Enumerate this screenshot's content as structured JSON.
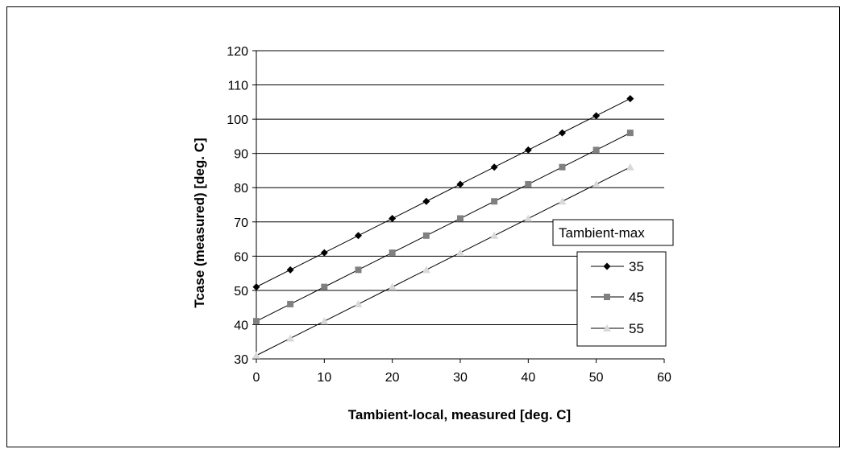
{
  "chart_data": {
    "type": "line",
    "title": "",
    "xlabel": "Tambient-local, measured [deg. C]",
    "ylabel": "Tcase (measured) [deg. C]",
    "xlim": [
      0,
      60
    ],
    "ylim": [
      30,
      120
    ],
    "x_ticks": [
      0,
      10,
      20,
      30,
      40,
      50,
      60
    ],
    "y_ticks": [
      30,
      40,
      50,
      60,
      70,
      80,
      90,
      100,
      110,
      120
    ],
    "grid": "horizontal",
    "legend_title": "Tambient-max",
    "legend_position": "right",
    "x": [
      0,
      5,
      10,
      15,
      20,
      25,
      30,
      35,
      40,
      45,
      50,
      55
    ],
    "series": [
      {
        "name": "35",
        "marker": "diamond",
        "color": "#000000",
        "values": [
          51,
          56,
          61,
          66,
          71,
          76,
          81,
          86,
          91,
          96,
          101,
          106
        ]
      },
      {
        "name": "45",
        "marker": "square",
        "color": "#808080",
        "values": [
          41,
          46,
          51,
          56,
          61,
          66,
          71,
          76,
          81,
          86,
          91,
          96
        ]
      },
      {
        "name": "55",
        "marker": "triangle",
        "color": "#d9d9d9",
        "values": [
          31,
          36,
          41,
          46,
          51,
          56,
          61,
          66,
          71,
          76,
          81,
          86
        ]
      }
    ]
  }
}
